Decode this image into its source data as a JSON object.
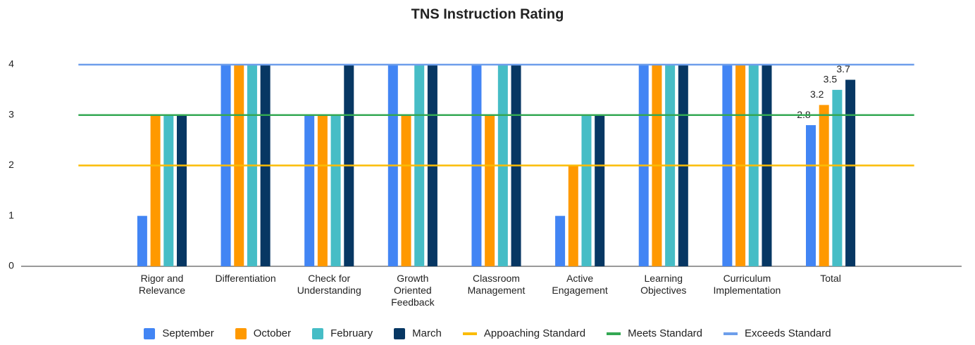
{
  "chart_data": {
    "type": "bar",
    "title": "TNS Instruction Rating",
    "categories": [
      null,
      "Rigor and\nRelevance",
      "Differentiation",
      "Check for\nUnderstanding",
      "Growth\nOriented\nFeedback",
      "Classroom\nManagement",
      "Active\nEngagement",
      "Learning\nObjectives",
      "Curriculum\nImplementation",
      "Total",
      null
    ],
    "series": [
      {
        "name": "September",
        "color": "#4285f4",
        "values": [
          null,
          1,
          4,
          3,
          4,
          4,
          1,
          4,
          4,
          2.8,
          null
        ]
      },
      {
        "name": "October",
        "color": "#ff9900",
        "values": [
          null,
          3,
          4,
          3,
          3,
          3,
          2,
          4,
          4,
          3.2,
          null
        ]
      },
      {
        "name": "February",
        "color": "#46bdc6",
        "values": [
          null,
          3,
          4,
          3,
          4,
          4,
          3,
          4,
          4,
          3.5,
          null
        ]
      },
      {
        "name": "March",
        "color": "#073763",
        "values": [
          null,
          3,
          4,
          4,
          4,
          4,
          3,
          4,
          4,
          3.7,
          null
        ]
      },
      {
        "name": "Appoaching Standard",
        "type": "line",
        "color": "#fbbc04",
        "values": [
          2,
          2,
          2,
          2,
          2,
          2,
          2,
          2,
          2,
          2,
          2
        ]
      },
      {
        "name": "Meets Standard",
        "type": "line",
        "color": "#34a853",
        "values": [
          3,
          3,
          3,
          3,
          3,
          3,
          3,
          3,
          3,
          3,
          3
        ]
      },
      {
        "name": "Exceeds Standard",
        "type": "line",
        "color": "#6d9eeb",
        "values": [
          4,
          4,
          4,
          4,
          4,
          4,
          4,
          4,
          4,
          4,
          4
        ]
      }
    ],
    "data_labels": "last",
    "ylim": [
      0,
      4
    ],
    "yticks": [
      0,
      1,
      2,
      3,
      4
    ],
    "grid": false,
    "legend": "bottom"
  }
}
